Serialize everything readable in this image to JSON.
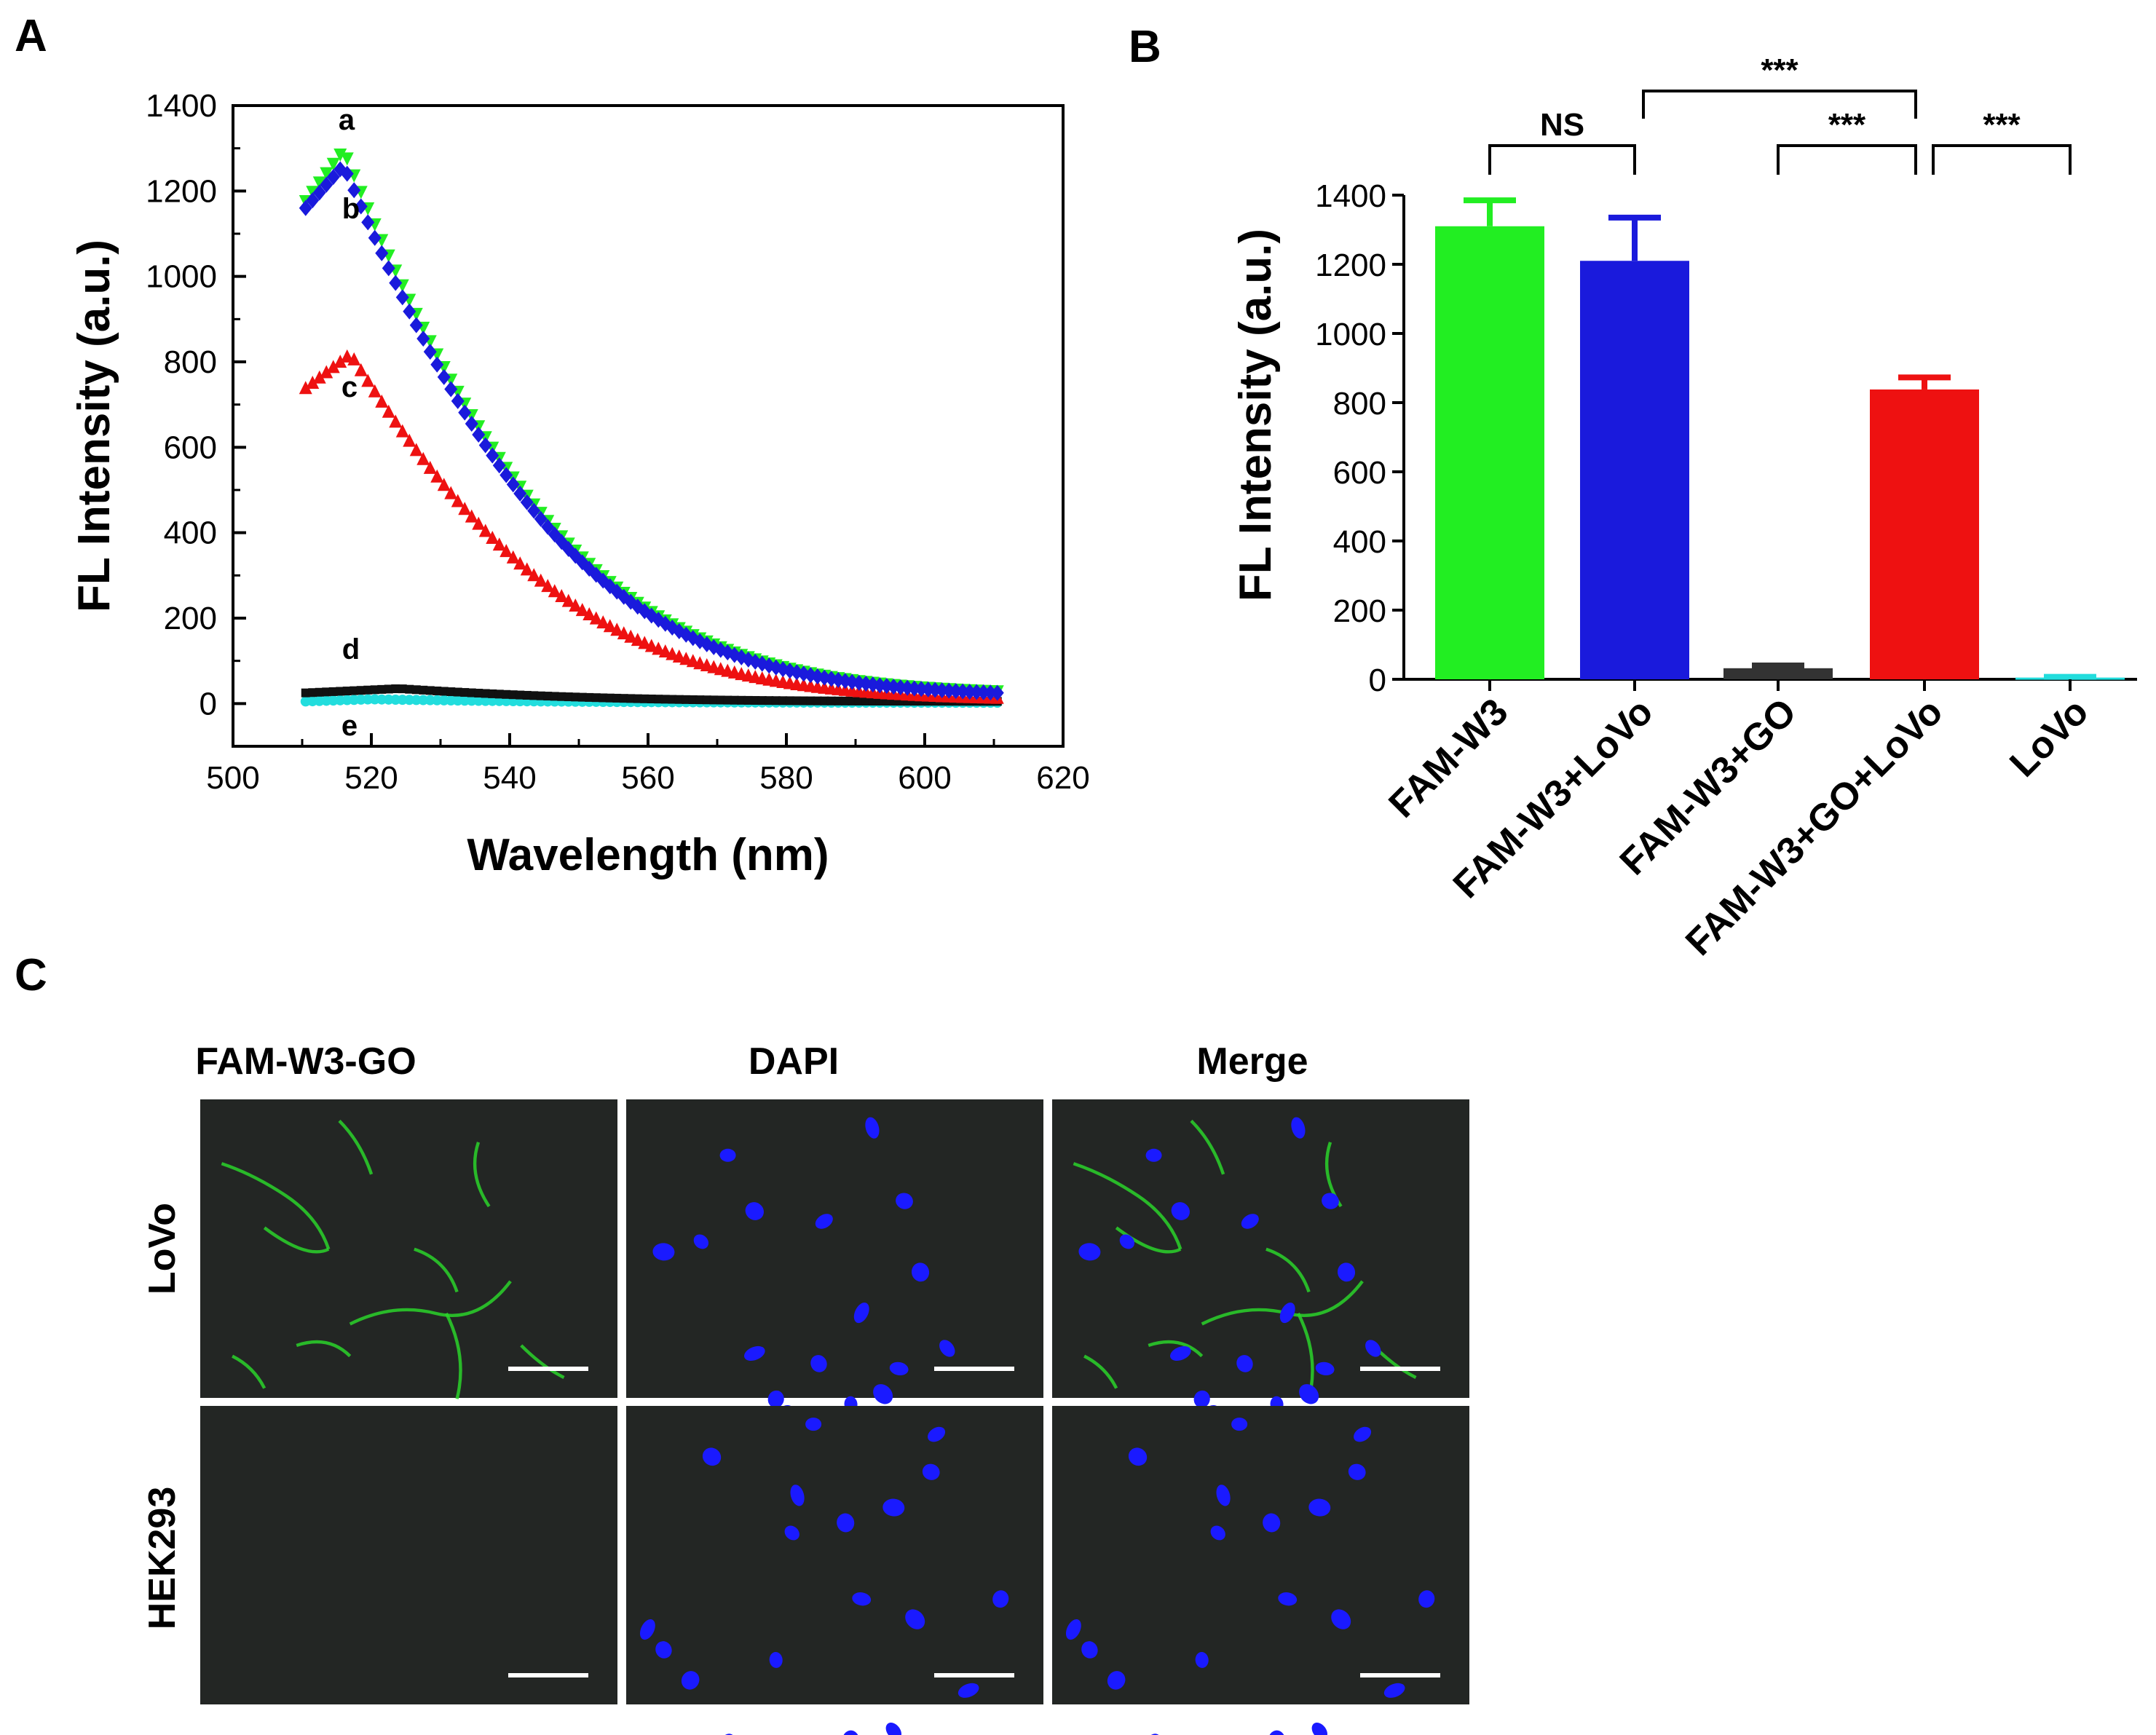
{
  "chart_data": [
    {
      "panel": "A",
      "type": "scatter",
      "title": "",
      "xlabel": "Wavelength (nm)",
      "ylabel": "FL Intensity (a.u.)",
      "xlim": [
        500,
        620
      ],
      "ylim": [
        -100,
        1400
      ],
      "xticks": [
        "500",
        "520",
        "540",
        "560",
        "580",
        "600",
        "620"
      ],
      "yticks": [
        "0",
        "200",
        "400",
        "600",
        "800",
        "1000",
        "1200",
        "1400"
      ],
      "series": [
        {
          "name": "a",
          "color": "#22ee22",
          "marker": "triangle-down",
          "peak_x": 516,
          "peak_y": 1295,
          "start_y": 1175,
          "end_y": 20
        },
        {
          "name": "b",
          "color": "#1a1adc",
          "marker": "diamond",
          "peak_x": 516,
          "peak_y": 1260,
          "start_y": 1160,
          "end_y": 18
        },
        {
          "name": "c",
          "color": "#ee1111",
          "marker": "triangle-up",
          "peak_x": 517,
          "peak_y": 820,
          "start_y": 740,
          "end_y": 10
        },
        {
          "name": "d",
          "color": "#111111",
          "marker": "square",
          "peak_x": 524,
          "peak_y": 35,
          "start_y": 25,
          "end_y": 5
        },
        {
          "name": "e",
          "color": "#22dddd",
          "marker": "circle",
          "peak_x": 520,
          "peak_y": 10,
          "start_y": 5,
          "end_y": 2
        }
      ]
    },
    {
      "panel": "B",
      "type": "bar",
      "title": "",
      "xlabel": "",
      "ylabel": "FL Intensity (a.u.)",
      "ylim": [
        0,
        1400
      ],
      "yticks": [
        "0",
        "200",
        "400",
        "600",
        "800",
        "1000",
        "1200",
        "1400"
      ],
      "categories": [
        "FAM-W3",
        "FAM-W3+LoVo",
        "FAM-W3+GO",
        "FAM-W3+GO+LoVo",
        "LoVo"
      ],
      "values": [
        1310,
        1210,
        32,
        838,
        5
      ],
      "errors": [
        75,
        125,
        8,
        35,
        2
      ],
      "colors": [
        "#22ee22",
        "#1a1adc",
        "#333333",
        "#ee1111",
        "#22dddd"
      ],
      "comparisons": [
        {
          "from": 0,
          "to": 1,
          "label": "NS"
        },
        {
          "from": 1,
          "to": 3,
          "label": "***"
        },
        {
          "from": 2,
          "to": 3,
          "label": "***"
        },
        {
          "from": 3,
          "to": 4,
          "label": "***"
        }
      ]
    }
  ],
  "panel_letters": {
    "a": "A",
    "b": "B",
    "c": "C"
  },
  "microscopy": {
    "columns": [
      "FAM-W3-GO",
      "DAPI",
      "Merge"
    ],
    "rows": [
      "LoVo",
      "HEK293"
    ],
    "background": "#232624",
    "nucleus_color": "#1a1aff",
    "membrane_color": "#2ad42a"
  }
}
